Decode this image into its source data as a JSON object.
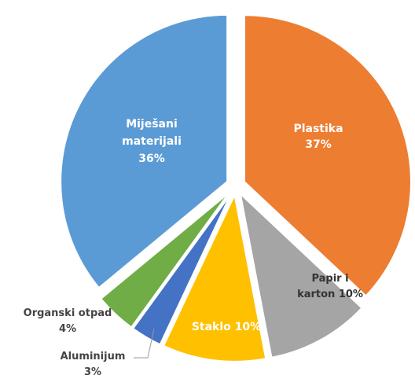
{
  "chart_data": {
    "type": "pie",
    "title": "",
    "slices": [
      {
        "label_lines": [
          "Plastika",
          "37%"
        ],
        "value": 37,
        "color": "#ED7D31"
      },
      {
        "label_lines": [
          "Papir i",
          "karton 10%"
        ],
        "value": 10,
        "color": "#A5A5A5"
      },
      {
        "label_lines": [
          "Staklo 10%"
        ],
        "value": 10,
        "color": "#FFC000"
      },
      {
        "label_lines": [
          "Aluminijum",
          "3%"
        ],
        "value": 3,
        "color": "#4472C4"
      },
      {
        "label_lines": [
          "Organski otpad",
          "4%"
        ],
        "value": 4,
        "color": "#70AD47"
      },
      {
        "label_lines": [
          "Miješani",
          "materijali",
          "36%"
        ],
        "value": 36,
        "color": "#5B9BD5"
      }
    ],
    "exploded": true,
    "legend": "none"
  }
}
